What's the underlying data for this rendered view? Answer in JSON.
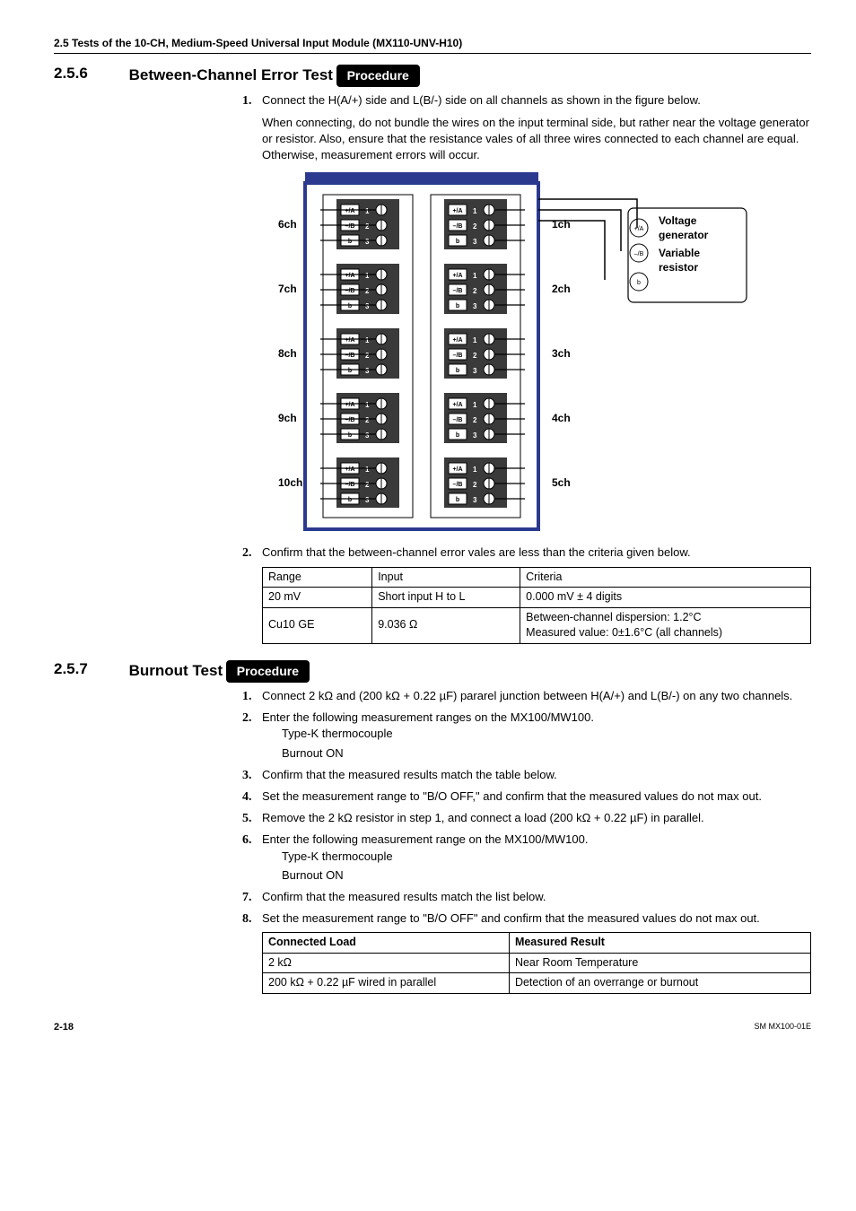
{
  "header": "2.5  Tests of the 10-CH, Medium-Speed Universal Input Module (MX110-UNV-H10)",
  "section1": {
    "number": "2.5.6",
    "title": "Between-Channel Error Test",
    "procedure_label": "Procedure",
    "steps": [
      {
        "n": "1.",
        "text": "Connect the H(A/+) side and L(B/-) side on all channels as shown in the figure below.",
        "para2": "When connecting, do not bundle the wires on the input terminal side, but rather near the voltage generator or resistor. Also, ensure that the resistance vales of all three wires connected to each channel are equal. Otherwise, measurement errors will occur."
      },
      {
        "n": "2.",
        "text": "Confirm that the between-channel error vales are less than the criteria given below."
      }
    ],
    "table": {
      "headers": [
        "Range",
        "Input",
        "Criteria"
      ],
      "rows": [
        [
          "20 mV",
          "Short input H to L",
          "0.000 mV ± 4 digits"
        ],
        [
          "Cu10 GE",
          "9.036 Ω",
          "Between-channel dispersion: 1.2°C\nMeasured value: 0±1.6°C (all channels)"
        ]
      ]
    }
  },
  "diagram": {
    "left_labels": [
      "6ch",
      "7ch",
      "8ch",
      "9ch",
      "10ch"
    ],
    "right_labels": [
      "1ch",
      "2ch",
      "3ch",
      "4ch",
      "5ch"
    ],
    "terminal_rows": [
      {
        "label": "+/A",
        "num": "1"
      },
      {
        "label": "–/B",
        "num": "2"
      },
      {
        "label": "b",
        "num": "3"
      }
    ],
    "source_box": {
      "title1": "Voltage",
      "title2": "generator",
      "title3": "Variable",
      "title4": "resistor",
      "pins": [
        "+/A",
        "–/B",
        "b"
      ]
    },
    "colors": {
      "module_blue": "#2b3a8f",
      "wire": "#000000"
    }
  },
  "section2": {
    "number": "2.5.7",
    "title": "Burnout Test",
    "procedure_label": "Procedure",
    "steps": [
      {
        "n": "1.",
        "text": "Connect 2 kΩ and (200 kΩ + 0.22 µF) pararel junction between H(A/+) and L(B/-) on any two channels."
      },
      {
        "n": "2.",
        "text": "Enter the following measurement ranges on the MX100/MW100.",
        "subs": [
          "Type-K thermocouple",
          "Burnout ON"
        ]
      },
      {
        "n": "3.",
        "text": "Confirm that the measured results match the table below."
      },
      {
        "n": "4.",
        "text": "Set the measurement range to \"B/O OFF,\" and confirm that the measured values do not max out."
      },
      {
        "n": "5.",
        "text": "Remove the 2 kΩ resistor in step 1, and connect a load (200 kΩ + 0.22 µF) in parallel."
      },
      {
        "n": "6.",
        "text": "Enter the following measurement range on the MX100/MW100.",
        "subs": [
          "Type-K thermocouple",
          "Burnout ON"
        ]
      },
      {
        "n": "7.",
        "text": "Confirm that the measured results match the list below."
      },
      {
        "n": "8.",
        "text": "Set the measurement range to \"B/O OFF\" and confirm that the measured values do not max out."
      }
    ],
    "table": {
      "headers": [
        "Connected Load",
        "Measured Result"
      ],
      "rows": [
        [
          "2 kΩ",
          "Near Room Temperature"
        ],
        [
          "200 kΩ + 0.22 µF wired in parallel",
          "Detection of an overrange or burnout"
        ]
      ]
    }
  },
  "footer": {
    "left": "2-18",
    "right": "SM MX100-01E"
  }
}
